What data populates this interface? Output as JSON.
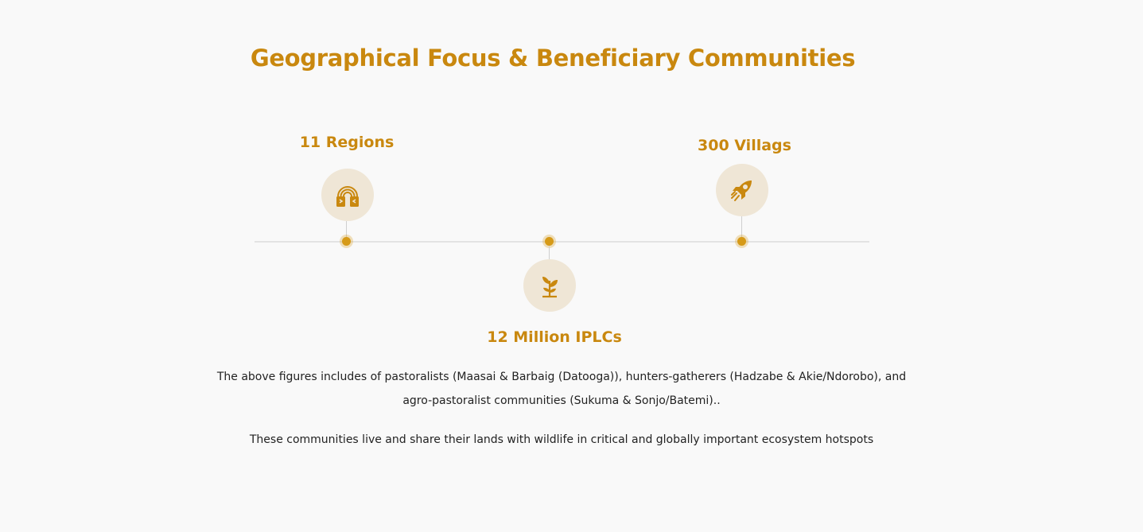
{
  "title": "Geographical Focus & Beneficiary Communities",
  "stats": [
    {
      "label": "11 Regions",
      "icon": "rainbow-hands-icon"
    },
    {
      "label": "12 Million IPLCs",
      "icon": "sprout-icon"
    },
    {
      "label": "300 Villags",
      "icon": "rocket-icon"
    }
  ],
  "description": {
    "line1": "The above  figures includes of pastoralists (Maasai & Barbaig (Datooga)), hunters-gatherers (Hadzabe & Akie/Ndorobo), and agro-pastoralist communities (Sukuma & Sonjo/Batemi)..",
    "line2": "These communities live and share their lands with wildlife in critical and globally important ecosystem hotspots"
  },
  "colors": {
    "accent": "#c9880f",
    "icon_bg": "#efe6d6",
    "line": "#e3e3e3",
    "background": "#f9f9f9"
  }
}
